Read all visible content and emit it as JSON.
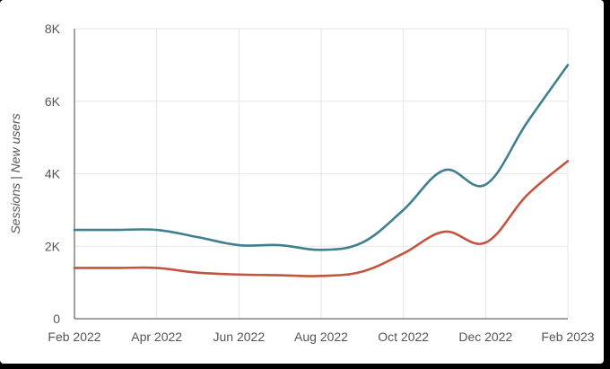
{
  "chart_data": {
    "type": "line",
    "ylabel": "Sessions | New users",
    "xlabel": "",
    "title": "",
    "ylim": [
      0,
      8000
    ],
    "y_ticks": [
      {
        "value": 0,
        "label": "0"
      },
      {
        "value": 2000,
        "label": "2K"
      },
      {
        "value": 4000,
        "label": "4K"
      },
      {
        "value": 6000,
        "label": "6K"
      },
      {
        "value": 8000,
        "label": "8K"
      }
    ],
    "x_ticks": [
      "Feb 2022",
      "Apr 2022",
      "Jun 2022",
      "Aug 2022",
      "Oct 2022",
      "Dec 2022",
      "Feb 2023"
    ],
    "x": [
      "Feb 2022",
      "Mar 2022",
      "Apr 2022",
      "May 2022",
      "Jun 2022",
      "Jul 2022",
      "Aug 2022",
      "Sep 2022",
      "Oct 2022",
      "Nov 2022",
      "Dec 2022",
      "Jan 2023",
      "Feb 2023"
    ],
    "grid": true,
    "series": [
      {
        "color": "#3f7f8e",
        "values": [
          2450,
          2450,
          2450,
          2250,
          2030,
          2030,
          1900,
          2100,
          3000,
          4100,
          3700,
          5400,
          7000
        ]
      },
      {
        "color": "#c4533f",
        "values": [
          1400,
          1400,
          1400,
          1270,
          1220,
          1200,
          1180,
          1300,
          1800,
          2400,
          2100,
          3400,
          4350
        ]
      }
    ]
  }
}
